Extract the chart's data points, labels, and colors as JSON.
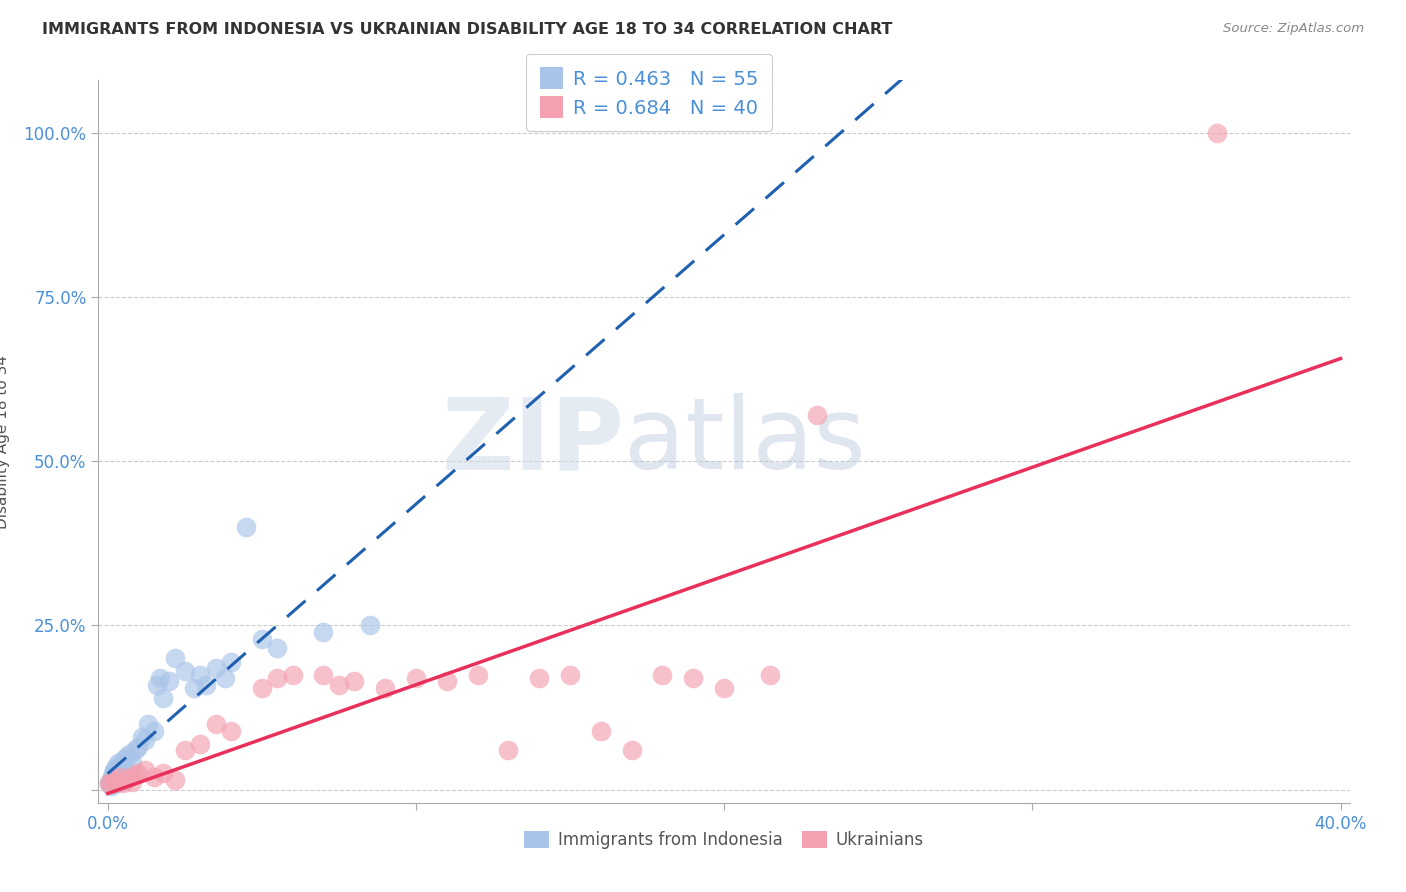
{
  "title": "IMMIGRANTS FROM INDONESIA VS UKRAINIAN DISABILITY AGE 18 TO 34 CORRELATION CHART",
  "source": "Source: ZipAtlas.com",
  "ylabel": "Disability Age 18 to 34",
  "xlim": [
    -0.003,
    0.403
  ],
  "ylim": [
    -0.02,
    1.08
  ],
  "xticks": [
    0.0,
    0.1,
    0.2,
    0.3,
    0.4
  ],
  "xticklabels": [
    "0.0%",
    "",
    "",
    "",
    "40.0%"
  ],
  "yticks": [
    0.0,
    0.25,
    0.5,
    0.75,
    1.0
  ],
  "yticklabels": [
    "",
    "25.0%",
    "50.0%",
    "75.0%",
    "100.0%"
  ],
  "legend_indonesia": "Immigrants from Indonesia",
  "legend_ukraine": "Ukrainians",
  "R_indonesia": "0.463",
  "N_indonesia": "55",
  "R_ukraine": "0.684",
  "N_ukraine": "40",
  "color_indonesia": "#a8c4e8",
  "color_ukraine": "#f4a0b0",
  "line_color_indonesia": "#2060b0",
  "line_color_ukraine": "#e8305a",
  "watermark_zip": "ZIP",
  "watermark_atlas": "atlas",
  "indonesia_x": [
    0.0005,
    0.0008,
    0.001,
    0.001,
    0.0012,
    0.0013,
    0.0014,
    0.0015,
    0.0016,
    0.0017,
    0.0018,
    0.002,
    0.002,
    0.002,
    0.0022,
    0.0024,
    0.0025,
    0.0026,
    0.0028,
    0.003,
    0.003,
    0.003,
    0.0032,
    0.0035,
    0.004,
    0.004,
    0.0045,
    0.005,
    0.005,
    0.006,
    0.007,
    0.008,
    0.009,
    0.01,
    0.011,
    0.012,
    0.013,
    0.015,
    0.016,
    0.017,
    0.018,
    0.02,
    0.022,
    0.025,
    0.028,
    0.03,
    0.032,
    0.035,
    0.038,
    0.04,
    0.045,
    0.05,
    0.055,
    0.07,
    0.085
  ],
  "indonesia_y": [
    0.01,
    0.008,
    0.012,
    0.015,
    0.006,
    0.018,
    0.01,
    0.02,
    0.014,
    0.008,
    0.025,
    0.012,
    0.018,
    0.03,
    0.008,
    0.015,
    0.022,
    0.035,
    0.01,
    0.012,
    0.025,
    0.03,
    0.04,
    0.015,
    0.012,
    0.035,
    0.02,
    0.045,
    0.035,
    0.05,
    0.055,
    0.04,
    0.06,
    0.065,
    0.08,
    0.075,
    0.1,
    0.09,
    0.16,
    0.17,
    0.14,
    0.165,
    0.2,
    0.18,
    0.155,
    0.175,
    0.16,
    0.185,
    0.17,
    0.195,
    0.4,
    0.23,
    0.215,
    0.24,
    0.25
  ],
  "ukraine_x": [
    0.0005,
    0.001,
    0.002,
    0.003,
    0.004,
    0.005,
    0.006,
    0.007,
    0.008,
    0.009,
    0.01,
    0.012,
    0.015,
    0.018,
    0.022,
    0.025,
    0.03,
    0.035,
    0.04,
    0.05,
    0.055,
    0.06,
    0.07,
    0.075,
    0.08,
    0.09,
    0.1,
    0.11,
    0.12,
    0.13,
    0.14,
    0.15,
    0.16,
    0.17,
    0.18,
    0.19,
    0.2,
    0.215,
    0.23,
    0.36
  ],
  "ukraine_y": [
    0.01,
    0.008,
    0.015,
    0.012,
    0.02,
    0.01,
    0.015,
    0.018,
    0.012,
    0.022,
    0.025,
    0.03,
    0.02,
    0.025,
    0.015,
    0.06,
    0.07,
    0.1,
    0.09,
    0.155,
    0.17,
    0.175,
    0.175,
    0.16,
    0.165,
    0.155,
    0.17,
    0.165,
    0.175,
    0.06,
    0.17,
    0.175,
    0.09,
    0.06,
    0.175,
    0.17,
    0.155,
    0.175,
    0.57,
    1.0
  ]
}
